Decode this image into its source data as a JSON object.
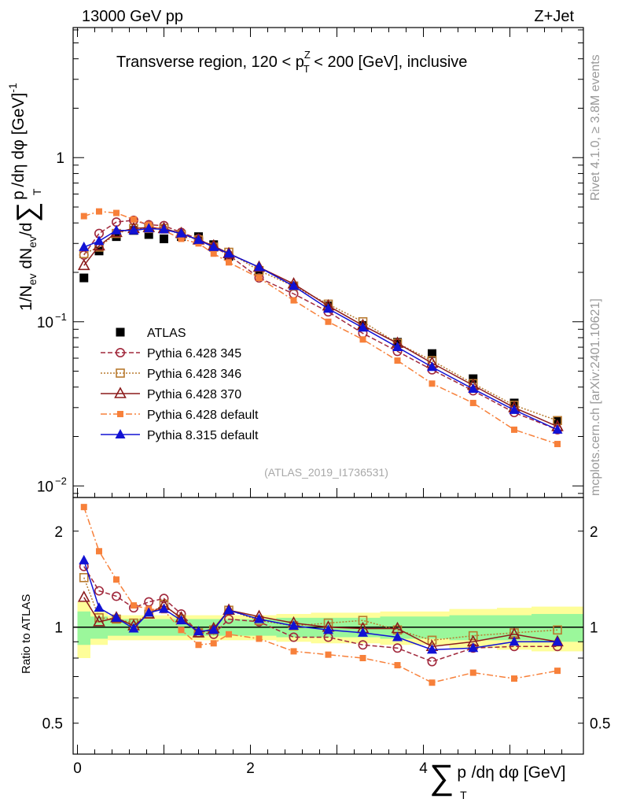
{
  "header": {
    "left": "13000 GeV pp",
    "right": "Z+Jet"
  },
  "side_labels": {
    "rivet": "Rivet 4.1.0, ≥ 3.8M events",
    "mcplots": "mcplots.cern.ch [arXiv:2401.10621]"
  },
  "chart_data": [
    {
      "type": "scatter",
      "panel": "main",
      "title_parts": {
        "a": "Transverse region, 120 < p",
        "sup": "Z",
        "sub": "T",
        "b": " < 200 [GeV], inclusive"
      },
      "ylabel_parts": {
        "a": "1/N",
        "a_sub": "ev",
        "b": " dN",
        "b_sub": "ev",
        "c": "/d",
        "sum": "∑",
        "d": "p",
        "d_sub": "T",
        "e": "/dη dφ  [GeV]",
        "e_sup": "-1"
      },
      "yscale": "log",
      "ylim": [
        0.0085,
        6.2
      ],
      "xlim": [
        -0.05,
        5.85
      ],
      "yticks": [
        {
          "value": 1,
          "label": "1"
        },
        {
          "value": 0.1,
          "label": "10",
          "sup": "−1"
        },
        {
          "value": 0.01,
          "label": "10",
          "sup": "−2"
        }
      ],
      "watermark": "(ATLAS_2019_I1736531)",
      "x": [
        0.075,
        0.25,
        0.45,
        0.65,
        0.825,
        1.0,
        1.2,
        1.4,
        1.575,
        1.75,
        2.1,
        2.5,
        2.9,
        3.3,
        3.7,
        4.1,
        4.575,
        5.05,
        5.55
      ],
      "series": [
        {
          "name": "ATLAS",
          "style": "data",
          "color": "#000000",
          "values": [
            0.185,
            0.27,
            0.33,
            0.36,
            0.34,
            0.32,
            0.33,
            0.33,
            0.295,
            0.25,
            0.205,
            0.165,
            0.125,
            0.095,
            0.075,
            0.064,
            0.045,
            0.032,
            0.025
          ]
        },
        {
          "name": "Pythia 6.428 345",
          "style": "open-circle",
          "color": "#a1283c",
          "dash": "6,3",
          "values": [
            0.255,
            0.345,
            0.405,
            0.415,
            0.39,
            0.385,
            0.35,
            0.32,
            0.285,
            0.255,
            0.185,
            0.148,
            0.115,
            0.085,
            0.066,
            0.051,
            0.038,
            0.028,
            0.022
          ]
        },
        {
          "name": "Pythia 6.428 346",
          "style": "open-square",
          "color": "#b87a2f",
          "dash": "2,2",
          "values": [
            0.26,
            0.285,
            0.345,
            0.37,
            0.37,
            0.37,
            0.34,
            0.315,
            0.285,
            0.265,
            0.205,
            0.165,
            0.128,
            0.1,
            0.074,
            0.058,
            0.042,
            0.031,
            0.025
          ]
        },
        {
          "name": "Pythia 6.428 370",
          "style": "open-triangle",
          "color": "#8c1c1c",
          "dash": "",
          "values": [
            0.22,
            0.29,
            0.35,
            0.37,
            0.375,
            0.37,
            0.345,
            0.315,
            0.29,
            0.26,
            0.215,
            0.17,
            0.125,
            0.095,
            0.074,
            0.056,
            0.041,
            0.03,
            0.023
          ]
        },
        {
          "name": "Pythia 6.428 default",
          "style": "filled-square-small",
          "color": "#f7803a",
          "dash": "8,3,2,3",
          "values": [
            0.44,
            0.47,
            0.46,
            0.42,
            0.39,
            0.36,
            0.32,
            0.3,
            0.26,
            0.23,
            0.185,
            0.135,
            0.1,
            0.078,
            0.058,
            0.042,
            0.032,
            0.022,
            0.018
          ]
        },
        {
          "name": "Pythia 8.315 default",
          "style": "filled-triangle",
          "color": "#1212d4",
          "dash": "",
          "values": [
            0.285,
            0.31,
            0.36,
            0.36,
            0.37,
            0.365,
            0.345,
            0.315,
            0.285,
            0.26,
            0.215,
            0.165,
            0.12,
            0.092,
            0.07,
            0.053,
            0.039,
            0.029,
            0.022
          ]
        }
      ]
    },
    {
      "type": "scatter",
      "panel": "ratio",
      "ylabel": "Ratio to ATLAS",
      "yscale": "log",
      "ylim": [
        0.4,
        2.55
      ],
      "xlim": [
        -0.05,
        5.85
      ],
      "xlabel_parts": {
        "sum": "∑",
        "a": "p",
        "a_sub": "T",
        "b": "/dη dφ [GeV]"
      },
      "xticks": [
        {
          "value": 0,
          "label": "0"
        },
        {
          "value": 2,
          "label": "2"
        },
        {
          "value": 4,
          "label": "4"
        }
      ],
      "yticks": [
        {
          "value": 0.5,
          "label": "0.5"
        },
        {
          "value": 1,
          "label": "1"
        },
        {
          "value": 2,
          "label": "2"
        }
      ],
      "band_edges": [
        0.0,
        0.15,
        0.35,
        0.55,
        0.75,
        0.9,
        1.1,
        1.3,
        1.5,
        1.65,
        1.85,
        2.3,
        2.7,
        3.1,
        3.5,
        3.9,
        4.3,
        4.85,
        5.25,
        5.85
      ],
      "band_inner": [
        0.12,
        0.08,
        0.06,
        0.06,
        0.06,
        0.06,
        0.06,
        0.06,
        0.06,
        0.06,
        0.06,
        0.07,
        0.07,
        0.07,
        0.08,
        0.08,
        0.09,
        0.09,
        0.1
      ],
      "band_outer": [
        0.2,
        0.12,
        0.09,
        0.09,
        0.09,
        0.09,
        0.09,
        0.09,
        0.09,
        0.09,
        0.09,
        0.1,
        0.11,
        0.11,
        0.12,
        0.12,
        0.14,
        0.15,
        0.16
      ],
      "x": [
        0.075,
        0.25,
        0.45,
        0.65,
        0.825,
        1.0,
        1.2,
        1.4,
        1.575,
        1.75,
        2.1,
        2.5,
        2.9,
        3.3,
        3.7,
        4.1,
        4.575,
        5.05,
        5.55
      ],
      "series": [
        {
          "name": "Pythia 6.428 345",
          "style": "open-circle",
          "color": "#a1283c",
          "dash": "6,3",
          "values": [
            1.55,
            1.3,
            1.25,
            1.15,
            1.2,
            1.23,
            1.1,
            0.96,
            0.95,
            1.06,
            1.04,
            0.93,
            0.93,
            0.88,
            0.86,
            0.78,
            0.86,
            0.87,
            0.87
          ]
        },
        {
          "name": "Pythia 6.428 346",
          "style": "open-square",
          "color": "#b87a2f",
          "dash": "2,2",
          "values": [
            1.43,
            1.07,
            1.06,
            1.03,
            1.1,
            1.18,
            1.06,
            0.96,
            0.98,
            1.13,
            1.05,
            1.01,
            1.03,
            1.05,
            0.98,
            0.91,
            0.94,
            0.96,
            0.98
          ]
        },
        {
          "name": "Pythia 6.428 370",
          "style": "open-triangle",
          "color": "#8c1c1c",
          "dash": "",
          "values": [
            1.24,
            1.04,
            1.07,
            1.01,
            1.1,
            1.17,
            1.07,
            0.96,
            0.99,
            1.13,
            1.08,
            1.03,
            1.0,
            0.99,
            0.99,
            0.87,
            0.9,
            0.95,
            0.9
          ]
        },
        {
          "name": "Pythia 6.428 default",
          "style": "filled-square-small",
          "color": "#f7803a",
          "dash": "8,3,2,3",
          "values": [
            2.38,
            1.73,
            1.41,
            1.17,
            1.14,
            1.13,
            0.98,
            0.88,
            0.89,
            0.95,
            0.92,
            0.84,
            0.82,
            0.8,
            0.76,
            0.67,
            0.72,
            0.69,
            0.73
          ]
        },
        {
          "name": "Pythia 8.315 default",
          "style": "filled-triangle",
          "color": "#1212d4",
          "dash": "",
          "values": [
            1.62,
            1.15,
            1.07,
            0.99,
            1.11,
            1.14,
            1.05,
            0.97,
            0.98,
            1.13,
            1.06,
            1.01,
            0.98,
            0.96,
            0.93,
            0.85,
            0.86,
            0.9,
            0.9
          ]
        }
      ]
    }
  ]
}
